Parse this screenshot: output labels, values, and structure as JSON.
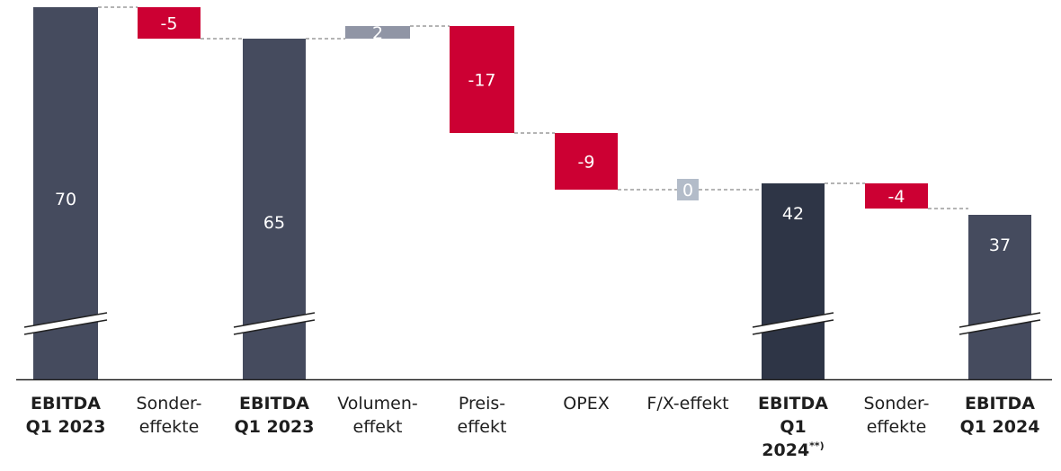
{
  "chart_data": {
    "type": "bar",
    "subtype": "waterfall",
    "categories": [
      {
        "lines": [
          "EBITDA",
          "Q1 2023"
        ],
        "bold": true,
        "sup": ""
      },
      {
        "lines": [
          "Sonder-",
          "effekte"
        ],
        "bold": false,
        "sup": ""
      },
      {
        "lines": [
          "EBITDA",
          "Q1 2023"
        ],
        "bold": true,
        "sup": ""
      },
      {
        "lines": [
          "Volumen-",
          "effekt"
        ],
        "bold": false,
        "sup": ""
      },
      {
        "lines": [
          "Preis-",
          "effekt"
        ],
        "bold": false,
        "sup": ""
      },
      {
        "lines": [
          "OPEX"
        ],
        "bold": false,
        "sup": ""
      },
      {
        "lines": [
          "F/X-effekt"
        ],
        "bold": false,
        "sup": ""
      },
      {
        "lines": [
          "EBITDA",
          "Q1",
          "2024"
        ],
        "bold": true,
        "sup": "**)"
      },
      {
        "lines": [
          "Sonder-",
          "effekte"
        ],
        "bold": false,
        "sup": ""
      },
      {
        "lines": [
          "EBITDA",
          "Q1 2024"
        ],
        "bold": true,
        "sup": ""
      }
    ],
    "bars": [
      {
        "label": "70",
        "value": 70,
        "kind": "total",
        "break": true
      },
      {
        "label": "-5",
        "value": -5,
        "kind": "delta"
      },
      {
        "label": "65",
        "value": 65,
        "kind": "total",
        "break": true
      },
      {
        "label": "2",
        "value": 2,
        "kind": "delta"
      },
      {
        "label": "-17",
        "value": -17,
        "kind": "delta"
      },
      {
        "label": "-9",
        "value": -9,
        "kind": "delta"
      },
      {
        "label": "0",
        "value": 0,
        "kind": "delta"
      },
      {
        "label": "42",
        "value": 42,
        "kind": "total",
        "break": true
      },
      {
        "label": "-4",
        "value": -4,
        "kind": "delta"
      },
      {
        "label": "37",
        "value": 37,
        "kind": "total",
        "break": true
      }
    ],
    "axis_break": true,
    "grid": false,
    "legend": "none",
    "colors": {
      "total": "#454b5e",
      "total_dark": "#2e3546",
      "negative": "#cc0033",
      "positive": "#9095a5",
      "zero": "#b3bcc9",
      "connector": "#888888",
      "baseline": "#222222"
    }
  }
}
